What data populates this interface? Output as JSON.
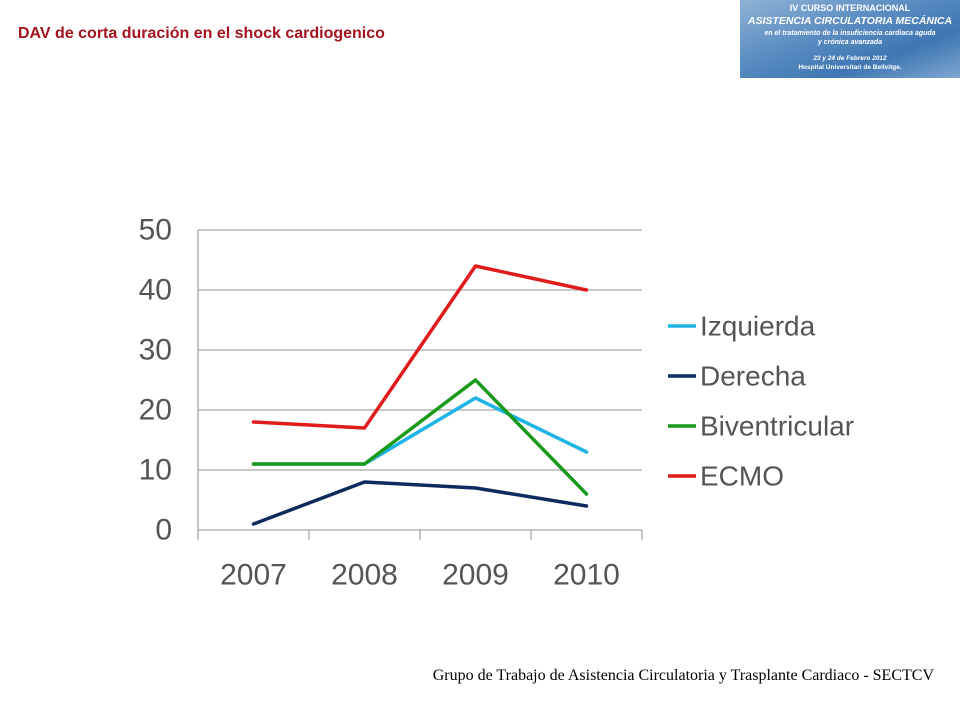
{
  "slide": {
    "title": "DAV de corta duración en el shock cardiogenico",
    "footer": "Grupo de Trabajo de Asistencia Circulatoria y Trasplante Cardiaco - SECTCV"
  },
  "banner": {
    "line1": "IV CURSO INTERNACIONAL",
    "line2": "ASISTENCIA CIRCULATORIA MECÁNICA",
    "line3": "en el tratamiento de la insuficiencia cardiaca aguda",
    "line4": "y crónica avanzada",
    "line5": "23 y 24 de Febrero 2012",
    "line6": "Hospital Universitari de Bellvitge."
  },
  "chart_data": {
    "type": "line",
    "title": "",
    "xlabel": "",
    "ylabel": "",
    "categories": [
      "2007",
      "2008",
      "2009",
      "2010"
    ],
    "ylim": [
      0,
      50
    ],
    "yticks": [
      "0",
      "10",
      "20",
      "30",
      "40",
      "50"
    ],
    "grid": true,
    "legend_position": "right",
    "series": [
      {
        "name": "Izquierda",
        "color": "#1fb4e6",
        "values": [
          11,
          11,
          22,
          13
        ]
      },
      {
        "name": "Derecha",
        "color": "#0f2a5e",
        "values": [
          1,
          8,
          7,
          4
        ]
      },
      {
        "name": "Biventricular",
        "color": "#1a9a1a",
        "values": [
          11,
          11,
          25,
          6
        ]
      },
      {
        "name": "ECMO",
        "color": "#e01b1b",
        "values": [
          18,
          17,
          44,
          40
        ]
      }
    ]
  }
}
